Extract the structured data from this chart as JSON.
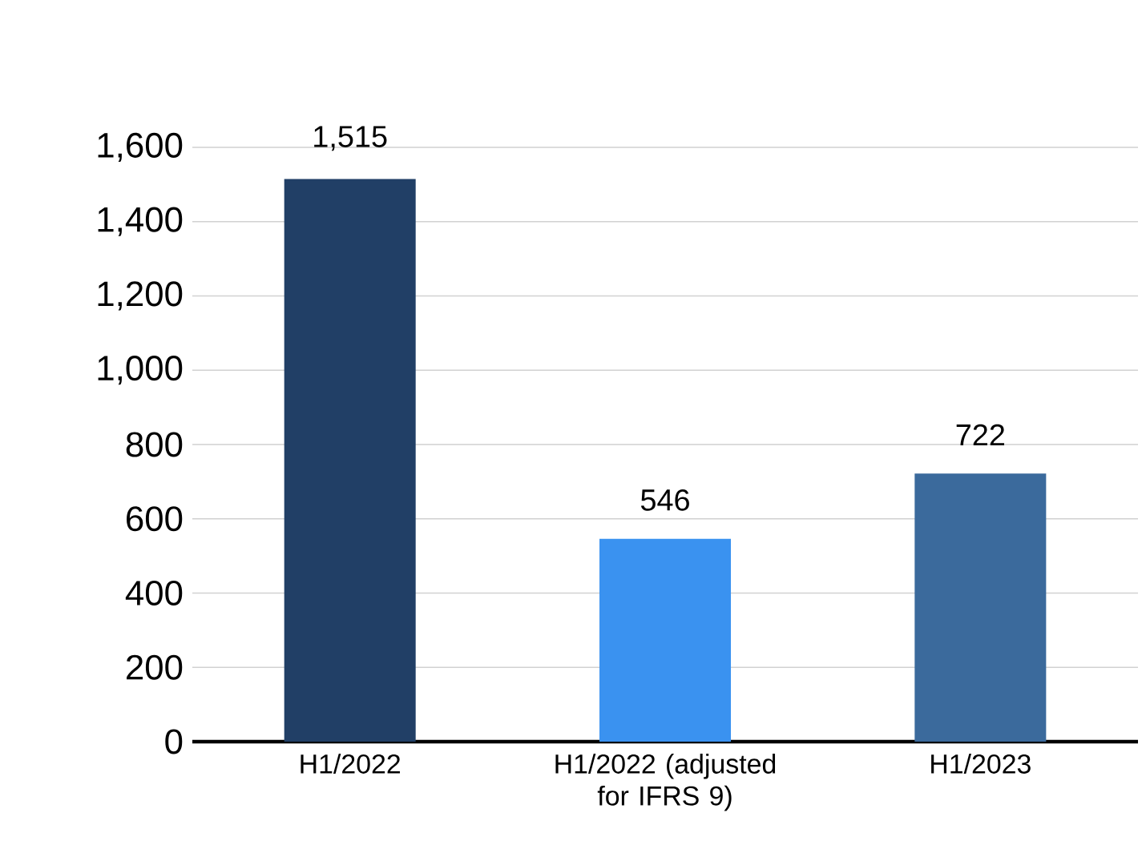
{
  "chart_data": {
    "type": "bar",
    "categories": [
      "H1/2022",
      "H1/2022 (adjusted for IFRS 9)",
      "H1/2023"
    ],
    "values": [
      1515,
      546,
      722
    ],
    "value_labels": [
      "1,515",
      "546",
      "722"
    ],
    "colors": [
      "#213f66",
      "#3a92f0",
      "#3b6a9c"
    ],
    "ylim": [
      0,
      1600
    ],
    "yticks": [
      0,
      200,
      400,
      600,
      800,
      {
        "value": 1000,
        "label": "1,000"
      },
      {
        "value": 1200,
        "label": "1,200"
      },
      {
        "value": 1400,
        "label": "1,400"
      },
      {
        "value": 1600,
        "label": "1,600"
      }
    ],
    "grid": "y"
  }
}
